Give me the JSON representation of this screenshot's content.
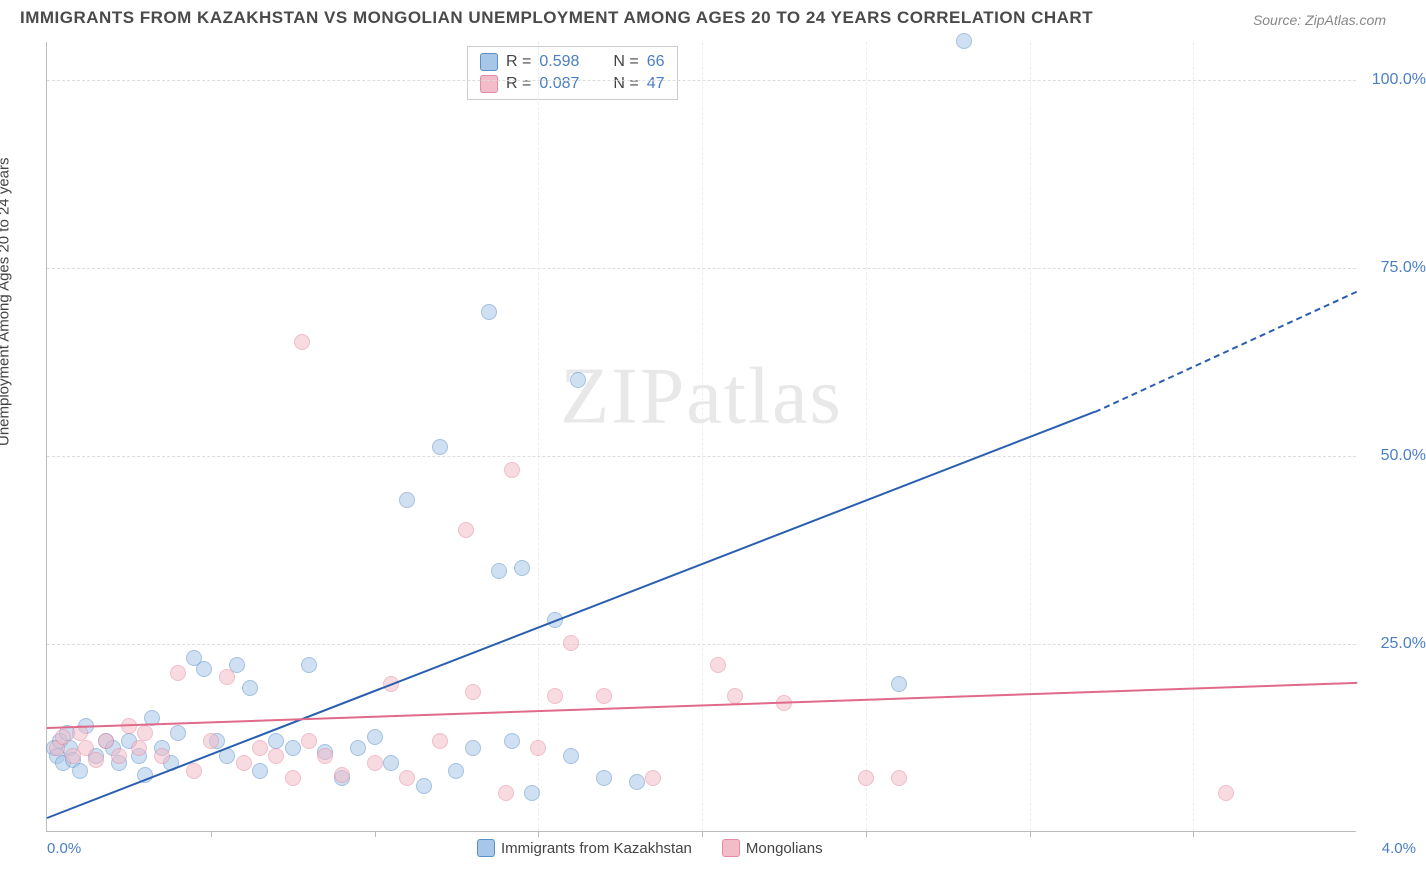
{
  "title": "IMMIGRANTS FROM KAZAKHSTAN VS MONGOLIAN UNEMPLOYMENT AMONG AGES 20 TO 24 YEARS CORRELATION CHART",
  "source_prefix": "Source: ",
  "source": "ZipAtlas.com",
  "y_axis_label": "Unemployment Among Ages 20 to 24 years",
  "watermark": "ZIPatlas",
  "chart": {
    "type": "scatter",
    "xlim": [
      0.0,
      4.0
    ],
    "ylim": [
      0.0,
      105.0
    ],
    "x_ticks_major": [
      0.0,
      4.0
    ],
    "x_tick_labels": [
      "0.0%",
      "4.0%"
    ],
    "x_minor_count": 7,
    "y_ticks": [
      25.0,
      50.0,
      75.0,
      100.0
    ],
    "y_tick_labels": [
      "25.0%",
      "50.0%",
      "75.0%",
      "100.0%"
    ],
    "grid_color": "#dddddd",
    "background_color": "#ffffff",
    "axis_color": "#bbbbbb",
    "y_tick_color": "#4a7fc4",
    "title_fontsize": 17,
    "label_fontsize": 15,
    "tick_fontsize": 16,
    "marker_radius": 8,
    "marker_opacity": 0.55,
    "series": [
      {
        "name": "Immigrants from Kazakhstan",
        "fill_color": "#a8c7e8",
        "stroke_color": "#5a8fc9",
        "line_color": "#2a5fb0",
        "R": 0.598,
        "N": 66,
        "trend": {
          "x0": 0.0,
          "y0": 2.0,
          "x1": 3.2,
          "y1": 56.0,
          "x1_dash": 4.0,
          "y1_dash": 72.0
        },
        "points": [
          [
            0.02,
            11
          ],
          [
            0.03,
            10
          ],
          [
            0.04,
            12
          ],
          [
            0.05,
            9
          ],
          [
            0.06,
            13
          ],
          [
            0.07,
            11
          ],
          [
            0.08,
            9.5
          ],
          [
            0.1,
            8
          ],
          [
            0.12,
            14
          ],
          [
            0.15,
            10
          ],
          [
            0.18,
            12
          ],
          [
            0.2,
            11
          ],
          [
            0.22,
            9
          ],
          [
            0.25,
            12
          ],
          [
            0.28,
            10
          ],
          [
            0.3,
            7.5
          ],
          [
            0.32,
            15
          ],
          [
            0.35,
            11
          ],
          [
            0.38,
            9
          ],
          [
            0.4,
            13
          ],
          [
            0.45,
            23
          ],
          [
            0.48,
            21.5
          ],
          [
            0.52,
            12
          ],
          [
            0.55,
            10
          ],
          [
            0.58,
            22
          ],
          [
            0.62,
            19
          ],
          [
            0.65,
            8
          ],
          [
            0.7,
            12
          ],
          [
            0.75,
            11
          ],
          [
            0.8,
            22
          ],
          [
            0.85,
            10.5
          ],
          [
            0.9,
            7
          ],
          [
            0.95,
            11
          ],
          [
            1.0,
            12.5
          ],
          [
            1.05,
            9
          ],
          [
            1.1,
            44
          ],
          [
            1.15,
            6
          ],
          [
            1.2,
            51
          ],
          [
            1.25,
            8
          ],
          [
            1.3,
            11
          ],
          [
            1.35,
            69
          ],
          [
            1.38,
            34.5
          ],
          [
            1.42,
            12
          ],
          [
            1.45,
            35
          ],
          [
            1.48,
            5
          ],
          [
            1.55,
            28
          ],
          [
            1.6,
            10
          ],
          [
            1.62,
            60
          ],
          [
            1.7,
            7
          ],
          [
            1.8,
            6.5
          ],
          [
            2.6,
            19.5
          ],
          [
            2.8,
            105
          ]
        ]
      },
      {
        "name": "Mongolians",
        "fill_color": "#f3bcc9",
        "stroke_color": "#e58aa0",
        "line_color": "#e06a8a",
        "R": 0.087,
        "N": 47,
        "trend": {
          "x0": 0.0,
          "y0": 14.0,
          "x1": 4.0,
          "y1": 20.0
        },
        "points": [
          [
            0.03,
            11
          ],
          [
            0.05,
            12.5
          ],
          [
            0.08,
            10
          ],
          [
            0.1,
            13
          ],
          [
            0.12,
            11
          ],
          [
            0.15,
            9.5
          ],
          [
            0.18,
            12
          ],
          [
            0.22,
            10
          ],
          [
            0.25,
            14
          ],
          [
            0.28,
            11
          ],
          [
            0.3,
            13
          ],
          [
            0.35,
            10
          ],
          [
            0.4,
            21
          ],
          [
            0.45,
            8
          ],
          [
            0.5,
            12
          ],
          [
            0.55,
            20.5
          ],
          [
            0.6,
            9
          ],
          [
            0.65,
            11
          ],
          [
            0.7,
            10
          ],
          [
            0.75,
            7
          ],
          [
            0.78,
            65
          ],
          [
            0.8,
            12
          ],
          [
            0.85,
            10
          ],
          [
            0.9,
            7.5
          ],
          [
            1.0,
            9
          ],
          [
            1.05,
            19.5
          ],
          [
            1.1,
            7
          ],
          [
            1.2,
            12
          ],
          [
            1.28,
            40
          ],
          [
            1.3,
            18.5
          ],
          [
            1.4,
            5
          ],
          [
            1.42,
            48
          ],
          [
            1.5,
            11
          ],
          [
            1.55,
            18
          ],
          [
            1.6,
            25
          ],
          [
            1.7,
            18
          ],
          [
            1.85,
            7
          ],
          [
            2.05,
            22
          ],
          [
            2.1,
            18
          ],
          [
            2.25,
            17
          ],
          [
            2.5,
            7
          ],
          [
            2.6,
            7
          ],
          [
            3.6,
            5
          ]
        ]
      }
    ],
    "stats_box": {
      "rows": [
        {
          "swatch": "#a8c7e8",
          "swatch_border": "#5a8fc9",
          "r_label": "R = ",
          "r_val": "0.598",
          "n_label": "N = ",
          "n_val": "66"
        },
        {
          "swatch": "#f3bcc9",
          "swatch_border": "#e58aa0",
          "r_label": "R = ",
          "r_val": "0.087",
          "n_label": "N = ",
          "n_val": "47"
        }
      ]
    },
    "bottom_legend": [
      {
        "swatch": "#a8c7e8",
        "swatch_border": "#5a8fc9",
        "label": "Immigrants from Kazakhstan"
      },
      {
        "swatch": "#f3bcc9",
        "swatch_border": "#e58aa0",
        "label": "Mongolians"
      }
    ]
  }
}
